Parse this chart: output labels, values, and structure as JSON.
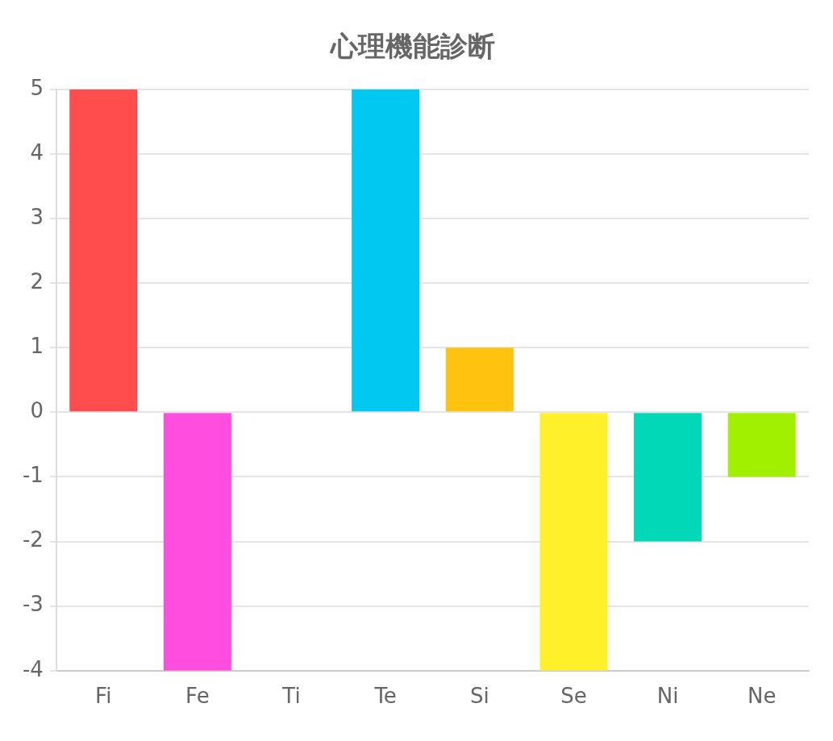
{
  "chart_data": {
    "type": "bar",
    "title": "心理機能診断",
    "categories": [
      "Fi",
      "Fe",
      "Ti",
      "Te",
      "Si",
      "Se",
      "Ni",
      "Ne"
    ],
    "values": [
      5,
      -4,
      0,
      5,
      1,
      -4,
      -2,
      -1
    ],
    "colors": [
      "#ff4d4d",
      "#ff4de0",
      "#9966ff",
      "#00c8f0",
      "#ffc30f",
      "#fff02a",
      "#00d8b8",
      "#a0f000"
    ],
    "ylim": [
      -4,
      5
    ],
    "yticks": [
      -4,
      -3,
      -2,
      -1,
      0,
      1,
      2,
      3,
      4,
      5
    ],
    "grid": "y",
    "legend": false
  }
}
